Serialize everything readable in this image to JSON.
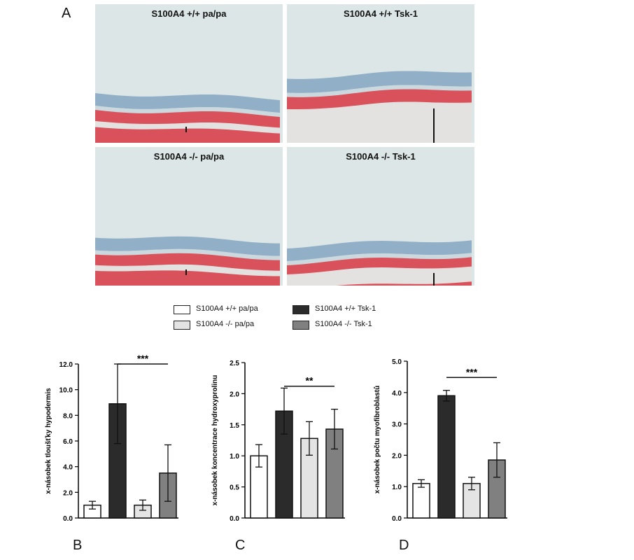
{
  "figure": {
    "panel_a_letter": "A",
    "panel_letters": [
      "B",
      "C",
      "D"
    ]
  },
  "histology": {
    "panels": [
      {
        "label": "S100A4 +/+ pa/pa",
        "phenotype": "thin"
      },
      {
        "label": "S100A4 +/+ Tsk-1",
        "phenotype": "thick"
      },
      {
        "label": "S100A4 -/- pa/pa",
        "phenotype": "thin"
      },
      {
        "label": "S100A4 -/- Tsk-1",
        "phenotype": "medium"
      }
    ]
  },
  "legend": {
    "items": [
      {
        "label": "S100A4 +/+  pa/pa",
        "color": "#ffffff"
      },
      {
        "label": "S100A4 +/+  Tsk-1",
        "color": "#2b2b2b"
      },
      {
        "label": "S100A4 -/-  pa/pa",
        "color": "#e4e4e4"
      },
      {
        "label": "S100A4 -/-  Tsk-1",
        "color": "#808080"
      }
    ]
  },
  "colors": {
    "bar_fills": [
      "#ffffff",
      "#2b2b2b",
      "#e4e4e4",
      "#808080"
    ],
    "stain_red": "#d8404a",
    "stain_blue": "#8aa9c4",
    "tissue_bg": "#dde6e6"
  },
  "chart_data": [
    {
      "type": "bar",
      "panel": "B",
      "ylabel": "x-násobek tloušťky hypodermis",
      "ylim": [
        0,
        12
      ],
      "yticks": [
        "0.0",
        "2.0",
        "4.0",
        "6.0",
        "8.0",
        "10.0",
        "12.0"
      ],
      "values": [
        1.0,
        8.9,
        1.0,
        3.5
      ],
      "errors": [
        0.3,
        3.1,
        0.4,
        2.2
      ],
      "significance": "***",
      "sig_from_bar": 1,
      "sig_to_bar": 3,
      "sig_y": 12.0
    },
    {
      "type": "bar",
      "panel": "C",
      "ylabel": "x-násobek koncentrace hydroxyprolinu",
      "ylim": [
        0,
        2.5
      ],
      "yticks": [
        "0.0",
        "0.5",
        "1.0",
        "1.5",
        "2.0",
        "2.5"
      ],
      "values": [
        1.0,
        1.72,
        1.28,
        1.43
      ],
      "errors": [
        0.18,
        0.37,
        0.27,
        0.32
      ],
      "significance": "**",
      "sig_from_bar": 1,
      "sig_to_bar": 3,
      "sig_y": 2.12
    },
    {
      "type": "bar",
      "panel": "D",
      "ylabel": "x-násobek počtu myofibroblastů",
      "ylim": [
        0,
        5
      ],
      "yticks": [
        "0.0",
        "1.0",
        "2.0",
        "3.0",
        "4.0",
        "5.0"
      ],
      "values": [
        1.1,
        3.9,
        1.1,
        1.85
      ],
      "errors": [
        0.12,
        0.17,
        0.2,
        0.55
      ],
      "significance": "***",
      "sig_from_bar": 1,
      "sig_to_bar": 3,
      "sig_y": 4.48
    }
  ]
}
